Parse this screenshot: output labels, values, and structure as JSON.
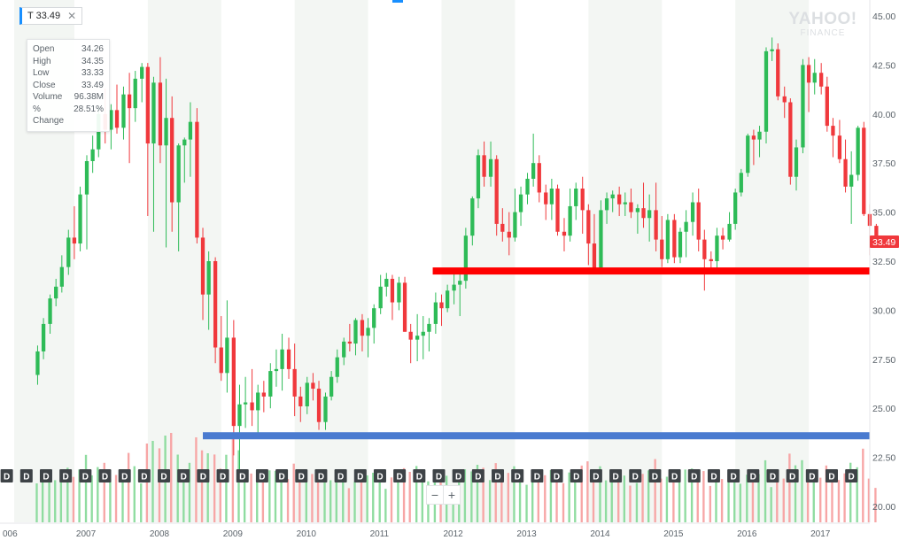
{
  "ticker": {
    "label": "T 33.49",
    "close_icon": "close-icon"
  },
  "ohlc": [
    {
      "label": "Open",
      "value": "34.26"
    },
    {
      "label": "High",
      "value": "34.35"
    },
    {
      "label": "Low",
      "value": "33.33"
    },
    {
      "label": "Close",
      "value": "33.49"
    },
    {
      "label": "Volume",
      "value": "96.38M"
    },
    {
      "label": "% Change",
      "value": "28.51%"
    }
  ],
  "logo": {
    "line1": "YAHOO!",
    "line2": "FINANCE"
  },
  "zoom": {
    "minus_label": "−",
    "plus_label": "+"
  },
  "colors": {
    "up": "#2ebb57",
    "down": "#f0383c",
    "price_tag": "#f0383c",
    "support_red": "#ff0000",
    "support_blue": "#4a7bd0",
    "band": "#f3f6f3",
    "volume_up": "#8fdca0",
    "volume_down": "#f7a6a6"
  },
  "chart_data": {
    "type": "candlestick",
    "interval": "monthly",
    "y_ticks": [
      "45.00",
      "42.50",
      "40.00",
      "37.50",
      "35.00",
      "32.50",
      "30.00",
      "27.50",
      "25.00",
      "22.50",
      "20.00"
    ],
    "ylim": [
      19.5,
      45.2
    ],
    "x_ticks": [
      "006",
      "2007",
      "2008",
      "2009",
      "2010",
      "2011",
      "2012",
      "2013",
      "2014",
      "2015",
      "2016",
      "2017"
    ],
    "last_price_label": "33.49",
    "dividend_marker_label": "D",
    "dividend_count": 44,
    "horizontal_lines": [
      {
        "name": "support-red",
        "value": 32.0,
        "x_start": 2011.88,
        "color": "#ff0000"
      },
      {
        "name": "support-blue",
        "value": 23.6,
        "x_start": 2008.75,
        "color": "#4a7bd0"
      }
    ],
    "candles": [
      {
        "t": 2006.5,
        "o": 26.7,
        "h": 28.2,
        "l": 26.2,
        "c": 27.9
      },
      {
        "t": 2006.58,
        "o": 27.9,
        "h": 29.6,
        "l": 27.5,
        "c": 29.3
      },
      {
        "t": 2006.67,
        "o": 29.3,
        "h": 30.8,
        "l": 28.8,
        "c": 30.6
      },
      {
        "t": 2006.75,
        "o": 30.6,
        "h": 31.6,
        "l": 30.2,
        "c": 31.2
      },
      {
        "t": 2006.83,
        "o": 31.2,
        "h": 32.8,
        "l": 30.9,
        "c": 32.2
      },
      {
        "t": 2006.92,
        "o": 32.2,
        "h": 34.1,
        "l": 31.8,
        "c": 33.7
      },
      {
        "t": 2007.0,
        "o": 33.7,
        "h": 35.3,
        "l": 32.6,
        "c": 33.4
      },
      {
        "t": 2007.08,
        "o": 33.4,
        "h": 36.3,
        "l": 33.0,
        "c": 35.9
      },
      {
        "t": 2007.17,
        "o": 35.9,
        "h": 37.9,
        "l": 33.1,
        "c": 37.6
      },
      {
        "t": 2007.25,
        "o": 37.6,
        "h": 38.9,
        "l": 37.0,
        "c": 38.2
      },
      {
        "t": 2007.33,
        "o": 38.2,
        "h": 40.4,
        "l": 37.8,
        "c": 40.0
      },
      {
        "t": 2007.42,
        "o": 40.0,
        "h": 41.3,
        "l": 38.5,
        "c": 39.2
      },
      {
        "t": 2007.5,
        "o": 39.2,
        "h": 40.5,
        "l": 38.2,
        "c": 40.2
      },
      {
        "t": 2007.58,
        "o": 40.2,
        "h": 41.5,
        "l": 39.0,
        "c": 39.3
      },
      {
        "t": 2007.67,
        "o": 39.3,
        "h": 41.4,
        "l": 38.7,
        "c": 41.0
      },
      {
        "t": 2007.75,
        "o": 41.0,
        "h": 42.1,
        "l": 37.5,
        "c": 40.3
      },
      {
        "t": 2007.83,
        "o": 40.3,
        "h": 42.2,
        "l": 39.6,
        "c": 41.8
      },
      {
        "t": 2007.92,
        "o": 41.8,
        "h": 42.6,
        "l": 40.6,
        "c": 42.4
      },
      {
        "t": 2008.0,
        "o": 42.4,
        "h": 42.6,
        "l": 34.8,
        "c": 38.5
      },
      {
        "t": 2008.08,
        "o": 38.5,
        "h": 41.9,
        "l": 34.0,
        "c": 41.6
      },
      {
        "t": 2008.17,
        "o": 41.6,
        "h": 42.9,
        "l": 37.5,
        "c": 38.4
      },
      {
        "t": 2008.25,
        "o": 38.4,
        "h": 41.8,
        "l": 33.2,
        "c": 39.8
      },
      {
        "t": 2008.33,
        "o": 39.8,
        "h": 40.9,
        "l": 34.0,
        "c": 35.5
      },
      {
        "t": 2008.42,
        "o": 35.5,
        "h": 38.5,
        "l": 33.0,
        "c": 38.4
      },
      {
        "t": 2008.5,
        "o": 38.4,
        "h": 38.8,
        "l": 36.5,
        "c": 38.7
      },
      {
        "t": 2008.58,
        "o": 38.7,
        "h": 40.6,
        "l": 36.8,
        "c": 39.6
      },
      {
        "t": 2008.67,
        "o": 39.6,
        "h": 40.3,
        "l": 33.4,
        "c": 33.7
      },
      {
        "t": 2008.75,
        "o": 33.7,
        "h": 34.2,
        "l": 29.5,
        "c": 30.8
      },
      {
        "t": 2008.83,
        "o": 30.8,
        "h": 33.0,
        "l": 29.0,
        "c": 32.5
      },
      {
        "t": 2008.92,
        "o": 32.5,
        "h": 32.7,
        "l": 27.3,
        "c": 28.1
      },
      {
        "t": 2009.0,
        "o": 28.1,
        "h": 29.7,
        "l": 26.4,
        "c": 26.8
      },
      {
        "t": 2009.08,
        "o": 26.8,
        "h": 30.5,
        "l": 25.8,
        "c": 28.6
      },
      {
        "t": 2009.17,
        "o": 28.6,
        "h": 29.5,
        "l": 22.6,
        "c": 24.1
      },
      {
        "t": 2009.25,
        "o": 24.1,
        "h": 26.2,
        "l": 21.6,
        "c": 25.2
      },
      {
        "t": 2009.33,
        "o": 25.2,
        "h": 26.6,
        "l": 24.0,
        "c": 25.3
      },
      {
        "t": 2009.42,
        "o": 25.3,
        "h": 27.0,
        "l": 24.1,
        "c": 24.9
      },
      {
        "t": 2009.5,
        "o": 24.9,
        "h": 26.2,
        "l": 23.5,
        "c": 25.8
      },
      {
        "t": 2009.58,
        "o": 25.8,
        "h": 26.4,
        "l": 24.8,
        "c": 25.6
      },
      {
        "t": 2009.67,
        "o": 25.6,
        "h": 27.3,
        "l": 25.0,
        "c": 26.9
      },
      {
        "t": 2009.75,
        "o": 26.9,
        "h": 28.0,
        "l": 26.1,
        "c": 27.0
      },
      {
        "t": 2009.83,
        "o": 27.0,
        "h": 28.8,
        "l": 25.9,
        "c": 28.0
      },
      {
        "t": 2009.92,
        "o": 28.0,
        "h": 28.6,
        "l": 26.5,
        "c": 27.0
      },
      {
        "t": 2010.0,
        "o": 27.0,
        "h": 28.3,
        "l": 24.6,
        "c": 25.6
      },
      {
        "t": 2010.08,
        "o": 25.6,
        "h": 26.1,
        "l": 24.3,
        "c": 25.1
      },
      {
        "t": 2010.17,
        "o": 25.1,
        "h": 26.6,
        "l": 24.7,
        "c": 26.3
      },
      {
        "t": 2010.25,
        "o": 26.3,
        "h": 26.8,
        "l": 25.4,
        "c": 26.0
      },
      {
        "t": 2010.33,
        "o": 26.0,
        "h": 26.4,
        "l": 23.9,
        "c": 24.3
      },
      {
        "t": 2010.42,
        "o": 24.3,
        "h": 25.8,
        "l": 23.9,
        "c": 25.6
      },
      {
        "t": 2010.5,
        "o": 25.6,
        "h": 26.9,
        "l": 25.4,
        "c": 26.6
      },
      {
        "t": 2010.58,
        "o": 26.6,
        "h": 28.0,
        "l": 26.3,
        "c": 27.6
      },
      {
        "t": 2010.67,
        "o": 27.6,
        "h": 28.6,
        "l": 27.2,
        "c": 28.4
      },
      {
        "t": 2010.75,
        "o": 28.4,
        "h": 29.3,
        "l": 27.9,
        "c": 28.3
      },
      {
        "t": 2010.83,
        "o": 28.3,
        "h": 29.6,
        "l": 27.7,
        "c": 29.5
      },
      {
        "t": 2010.92,
        "o": 29.5,
        "h": 29.8,
        "l": 27.9,
        "c": 28.7
      },
      {
        "t": 2011.0,
        "o": 28.7,
        "h": 29.6,
        "l": 27.6,
        "c": 29.1
      },
      {
        "t": 2011.08,
        "o": 29.1,
        "h": 30.3,
        "l": 28.3,
        "c": 30.1
      },
      {
        "t": 2011.17,
        "o": 30.1,
        "h": 31.8,
        "l": 29.8,
        "c": 31.2
      },
      {
        "t": 2011.25,
        "o": 31.2,
        "h": 31.9,
        "l": 30.7,
        "c": 31.6
      },
      {
        "t": 2011.33,
        "o": 31.6,
        "h": 31.8,
        "l": 29.5,
        "c": 30.4
      },
      {
        "t": 2011.42,
        "o": 30.4,
        "h": 31.7,
        "l": 30.0,
        "c": 31.4
      },
      {
        "t": 2011.5,
        "o": 31.4,
        "h": 31.7,
        "l": 28.9,
        "c": 28.9
      },
      {
        "t": 2011.58,
        "o": 28.9,
        "h": 29.3,
        "l": 27.3,
        "c": 28.5
      },
      {
        "t": 2011.67,
        "o": 28.5,
        "h": 29.8,
        "l": 27.4,
        "c": 28.7
      },
      {
        "t": 2011.75,
        "o": 28.7,
        "h": 29.7,
        "l": 27.5,
        "c": 28.9
      },
      {
        "t": 2011.83,
        "o": 28.9,
        "h": 29.6,
        "l": 27.9,
        "c": 29.3
      },
      {
        "t": 2011.92,
        "o": 29.3,
        "h": 30.9,
        "l": 28.8,
        "c": 30.4
      },
      {
        "t": 2012.0,
        "o": 30.4,
        "h": 30.8,
        "l": 29.2,
        "c": 30.1
      },
      {
        "t": 2012.08,
        "o": 30.1,
        "h": 31.3,
        "l": 29.9,
        "c": 31.0
      },
      {
        "t": 2012.17,
        "o": 31.0,
        "h": 31.9,
        "l": 30.3,
        "c": 31.3
      },
      {
        "t": 2012.25,
        "o": 31.3,
        "h": 32.0,
        "l": 29.7,
        "c": 31.5
      },
      {
        "t": 2012.33,
        "o": 31.5,
        "h": 34.2,
        "l": 31.1,
        "c": 33.8
      },
      {
        "t": 2012.42,
        "o": 33.8,
        "h": 35.8,
        "l": 33.3,
        "c": 35.7
      },
      {
        "t": 2012.5,
        "o": 35.7,
        "h": 38.2,
        "l": 35.2,
        "c": 37.9
      },
      {
        "t": 2012.58,
        "o": 37.9,
        "h": 38.6,
        "l": 36.3,
        "c": 36.8
      },
      {
        "t": 2012.67,
        "o": 36.8,
        "h": 38.6,
        "l": 36.3,
        "c": 37.7
      },
      {
        "t": 2012.75,
        "o": 37.7,
        "h": 37.9,
        "l": 33.8,
        "c": 34.4
      },
      {
        "t": 2012.83,
        "o": 34.4,
        "h": 35.2,
        "l": 33.5,
        "c": 34.0
      },
      {
        "t": 2012.92,
        "o": 34.0,
        "h": 35.0,
        "l": 32.8,
        "c": 33.7
      },
      {
        "t": 2013.0,
        "o": 33.7,
        "h": 36.2,
        "l": 33.5,
        "c": 35.0
      },
      {
        "t": 2013.08,
        "o": 35.0,
        "h": 36.3,
        "l": 34.3,
        "c": 35.9
      },
      {
        "t": 2013.17,
        "o": 35.9,
        "h": 37.0,
        "l": 35.4,
        "c": 36.7
      },
      {
        "t": 2013.25,
        "o": 36.7,
        "h": 39.0,
        "l": 36.3,
        "c": 37.5
      },
      {
        "t": 2013.33,
        "o": 37.5,
        "h": 37.9,
        "l": 35.5,
        "c": 36.0
      },
      {
        "t": 2013.42,
        "o": 36.0,
        "h": 36.4,
        "l": 34.6,
        "c": 35.4
      },
      {
        "t": 2013.5,
        "o": 35.4,
        "h": 36.7,
        "l": 34.6,
        "c": 36.2
      },
      {
        "t": 2013.58,
        "o": 36.2,
        "h": 36.4,
        "l": 33.8,
        "c": 34.0
      },
      {
        "t": 2013.67,
        "o": 34.0,
        "h": 34.7,
        "l": 33.0,
        "c": 33.8
      },
      {
        "t": 2013.75,
        "o": 33.8,
        "h": 36.2,
        "l": 33.5,
        "c": 35.3
      },
      {
        "t": 2013.83,
        "o": 35.3,
        "h": 36.5,
        "l": 34.6,
        "c": 36.2
      },
      {
        "t": 2013.92,
        "o": 36.2,
        "h": 36.8,
        "l": 33.9,
        "c": 35.1
      },
      {
        "t": 2014.0,
        "o": 35.1,
        "h": 35.4,
        "l": 32.3,
        "c": 33.4
      },
      {
        "t": 2014.08,
        "o": 33.4,
        "h": 34.9,
        "l": 31.9,
        "c": 32.0
      },
      {
        "t": 2014.17,
        "o": 32.0,
        "h": 35.6,
        "l": 31.9,
        "c": 35.1
      },
      {
        "t": 2014.25,
        "o": 35.1,
        "h": 36.0,
        "l": 34.4,
        "c": 35.7
      },
      {
        "t": 2014.33,
        "o": 35.7,
        "h": 36.1,
        "l": 35.0,
        "c": 35.9
      },
      {
        "t": 2014.42,
        "o": 35.9,
        "h": 36.3,
        "l": 34.8,
        "c": 35.4
      },
      {
        "t": 2014.5,
        "o": 35.4,
        "h": 36.0,
        "l": 34.8,
        "c": 35.5
      },
      {
        "t": 2014.58,
        "o": 35.5,
        "h": 36.2,
        "l": 34.7,
        "c": 35.0
      },
      {
        "t": 2014.67,
        "o": 35.0,
        "h": 35.4,
        "l": 33.9,
        "c": 35.2
      },
      {
        "t": 2014.75,
        "o": 35.2,
        "h": 36.5,
        "l": 34.2,
        "c": 34.7
      },
      {
        "t": 2014.83,
        "o": 34.7,
        "h": 35.9,
        "l": 33.5,
        "c": 35.1
      },
      {
        "t": 2014.92,
        "o": 35.1,
        "h": 36.5,
        "l": 33.0,
        "c": 33.6
      },
      {
        "t": 2015.0,
        "o": 33.6,
        "h": 34.8,
        "l": 32.2,
        "c": 32.6
      },
      {
        "t": 2015.08,
        "o": 32.6,
        "h": 34.9,
        "l": 32.4,
        "c": 34.6
      },
      {
        "t": 2015.17,
        "o": 34.6,
        "h": 34.9,
        "l": 32.4,
        "c": 32.7
      },
      {
        "t": 2015.25,
        "o": 32.7,
        "h": 34.2,
        "l": 32.4,
        "c": 34.0
      },
      {
        "t": 2015.33,
        "o": 34.0,
        "h": 35.1,
        "l": 32.7,
        "c": 34.5
      },
      {
        "t": 2015.42,
        "o": 34.5,
        "h": 36.0,
        "l": 33.8,
        "c": 35.5
      },
      {
        "t": 2015.5,
        "o": 35.5,
        "h": 36.2,
        "l": 33.0,
        "c": 33.6
      },
      {
        "t": 2015.58,
        "o": 33.6,
        "h": 34.1,
        "l": 31.0,
        "c": 32.6
      },
      {
        "t": 2015.67,
        "o": 32.6,
        "h": 33.0,
        "l": 32.1,
        "c": 32.5
      },
      {
        "t": 2015.75,
        "o": 32.5,
        "h": 34.2,
        "l": 32.1,
        "c": 33.8
      },
      {
        "t": 2015.83,
        "o": 33.8,
        "h": 34.2,
        "l": 33.1,
        "c": 33.6
      },
      {
        "t": 2015.92,
        "o": 33.6,
        "h": 35.0,
        "l": 33.5,
        "c": 34.4
      },
      {
        "t": 2016.0,
        "o": 34.4,
        "h": 36.2,
        "l": 34.1,
        "c": 36.0
      },
      {
        "t": 2016.08,
        "o": 36.0,
        "h": 37.2,
        "l": 35.8,
        "c": 37.0
      },
      {
        "t": 2016.17,
        "o": 37.0,
        "h": 39.0,
        "l": 36.8,
        "c": 38.9
      },
      {
        "t": 2016.25,
        "o": 38.9,
        "h": 39.2,
        "l": 37.4,
        "c": 38.7
      },
      {
        "t": 2016.33,
        "o": 38.7,
        "h": 39.4,
        "l": 37.8,
        "c": 39.1
      },
      {
        "t": 2016.42,
        "o": 39.1,
        "h": 43.4,
        "l": 38.5,
        "c": 43.2
      },
      {
        "t": 2016.5,
        "o": 43.2,
        "h": 43.9,
        "l": 42.7,
        "c": 43.3
      },
      {
        "t": 2016.58,
        "o": 43.3,
        "h": 43.6,
        "l": 40.7,
        "c": 40.9
      },
      {
        "t": 2016.67,
        "o": 40.9,
        "h": 41.4,
        "l": 39.8,
        "c": 40.6
      },
      {
        "t": 2016.75,
        "o": 40.6,
        "h": 40.8,
        "l": 36.4,
        "c": 36.8
      },
      {
        "t": 2016.83,
        "o": 36.8,
        "h": 38.7,
        "l": 36.1,
        "c": 38.3
      },
      {
        "t": 2016.92,
        "o": 38.3,
        "h": 42.8,
        "l": 38.0,
        "c": 42.5
      },
      {
        "t": 2017.0,
        "o": 42.5,
        "h": 42.9,
        "l": 40.1,
        "c": 41.6
      },
      {
        "t": 2017.08,
        "o": 41.6,
        "h": 42.8,
        "l": 41.0,
        "c": 42.1
      },
      {
        "t": 2017.17,
        "o": 42.1,
        "h": 42.6,
        "l": 41.0,
        "c": 41.4
      },
      {
        "t": 2017.25,
        "o": 41.4,
        "h": 41.9,
        "l": 39.1,
        "c": 39.4
      },
      {
        "t": 2017.33,
        "o": 39.4,
        "h": 39.8,
        "l": 37.8,
        "c": 38.9
      },
      {
        "t": 2017.42,
        "o": 38.9,
        "h": 39.7,
        "l": 37.5,
        "c": 37.7
      },
      {
        "t": 2017.5,
        "o": 37.7,
        "h": 38.7,
        "l": 36.0,
        "c": 36.3
      },
      {
        "t": 2017.58,
        "o": 36.3,
        "h": 38.1,
        "l": 34.4,
        "c": 36.9
      },
      {
        "t": 2017.67,
        "o": 36.9,
        "h": 39.4,
        "l": 36.6,
        "c": 39.3
      },
      {
        "t": 2017.75,
        "o": 39.3,
        "h": 39.6,
        "l": 34.8,
        "c": 34.9
      },
      {
        "t": 2017.83,
        "o": 34.9,
        "h": 35.4,
        "l": 32.8,
        "c": 34.3
      },
      {
        "t": 2017.92,
        "o": 34.3,
        "h": 34.4,
        "l": 33.3,
        "c": 33.5
      }
    ]
  }
}
